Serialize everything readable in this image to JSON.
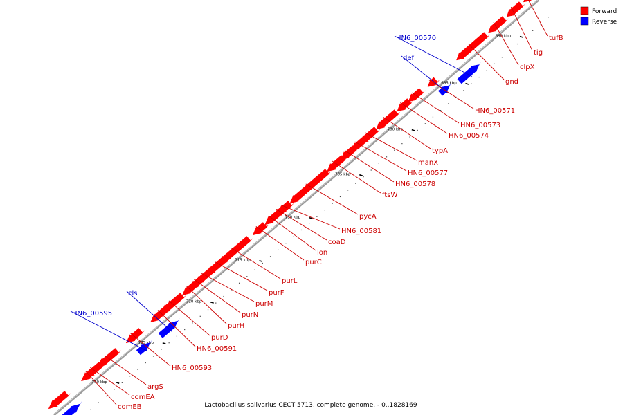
{
  "caption": "Lactobacillus salivarius CECT 5713, complete genome. - 0..1828169",
  "legend": [
    {
      "label": "Forward",
      "color": "#ff0000"
    },
    {
      "label": "Reverse",
      "color": "#0000ff"
    }
  ],
  "colors": {
    "forward_fill": "#ff0000",
    "forward_label": "#cc0000",
    "reverse_fill": "#0000ff",
    "reverse_label": "#0000cc",
    "backbone": "#999999"
  },
  "ticks": [
    "690 kbp",
    "695 kbp",
    "700 kbp",
    "705 kbp",
    "710 kbp",
    "715 kbp",
    "720 kbp",
    "725 kbp",
    "730 kbp"
  ],
  "genes": [
    {
      "name": "tufB",
      "strand": "forward"
    },
    {
      "name": "tig",
      "strand": "forward"
    },
    {
      "name": "clpX",
      "strand": "forward"
    },
    {
      "name": "gnd",
      "strand": "forward"
    },
    {
      "name": "HN6_00570",
      "strand": "reverse"
    },
    {
      "name": "def",
      "strand": "reverse"
    },
    {
      "name": "HN6_00571",
      "strand": "forward"
    },
    {
      "name": "HN6_00573",
      "strand": "forward"
    },
    {
      "name": "HN6_00574",
      "strand": "forward"
    },
    {
      "name": "typA",
      "strand": "forward"
    },
    {
      "name": "manX",
      "strand": "forward"
    },
    {
      "name": "HN6_00577",
      "strand": "forward"
    },
    {
      "name": "HN6_00578",
      "strand": "forward"
    },
    {
      "name": "ftsW",
      "strand": "forward"
    },
    {
      "name": "pycA",
      "strand": "forward"
    },
    {
      "name": "HN6_00581",
      "strand": "forward"
    },
    {
      "name": "coaD",
      "strand": "forward"
    },
    {
      "name": "lon",
      "strand": "forward"
    },
    {
      "name": "purC",
      "strand": "forward"
    },
    {
      "name": "purL",
      "strand": "forward"
    },
    {
      "name": "purF",
      "strand": "forward"
    },
    {
      "name": "purM",
      "strand": "forward"
    },
    {
      "name": "purN",
      "strand": "forward"
    },
    {
      "name": "purH",
      "strand": "forward"
    },
    {
      "name": "purD",
      "strand": "forward"
    },
    {
      "name": "HN6_00591",
      "strand": "forward"
    },
    {
      "name": "cls",
      "strand": "reverse"
    },
    {
      "name": "HN6_00595",
      "strand": "reverse"
    },
    {
      "name": "HN6_00593",
      "strand": "forward"
    },
    {
      "name": "argS",
      "strand": "forward"
    },
    {
      "name": "comEA",
      "strand": "forward"
    },
    {
      "name": "comEB",
      "strand": "forward"
    }
  ]
}
